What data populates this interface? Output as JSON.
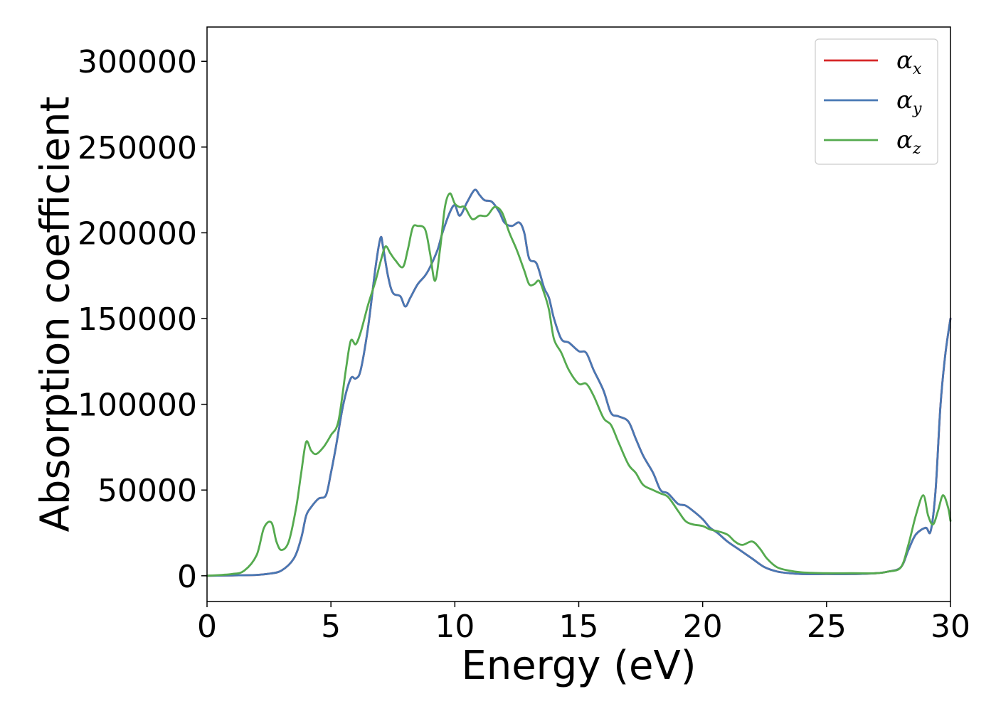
{
  "chart_data": {
    "type": "line",
    "xlabel": "Energy (eV)",
    "ylabel": "Absorption coefficient",
    "xlim": [
      0,
      30
    ],
    "ylim": [
      -15000,
      320000
    ],
    "xticks": [
      0,
      5,
      10,
      15,
      20,
      25,
      30
    ],
    "yticks": [
      0,
      50000,
      100000,
      150000,
      200000,
      250000,
      300000
    ],
    "grid": false,
    "legend_position": "top-right",
    "colors": {
      "alpha_x": "#d62728",
      "alpha_y": "#4878b4",
      "alpha_z": "#55aa4f"
    },
    "series": [
      {
        "name": "α",
        "subscript": "x",
        "key": "alpha_x",
        "draw_below": true,
        "x": [
          0,
          1,
          2,
          2.5,
          3,
          3.5,
          3.8,
          4,
          4.2,
          4.5,
          4.8,
          5,
          5.2,
          5.5,
          5.8,
          6,
          6.2,
          6.5,
          6.8,
          7,
          7.1,
          7.3,
          7.5,
          7.8,
          8,
          8.2,
          8.5,
          8.8,
          9,
          9.3,
          9.5,
          9.8,
          10,
          10.2,
          10.5,
          10.8,
          11,
          11.2,
          11.5,
          11.8,
          12,
          12.3,
          12.6,
          12.8,
          13,
          13.3,
          13.6,
          13.8,
          14,
          14.3,
          14.6,
          15,
          15.3,
          15.6,
          16,
          16.3,
          16.6,
          17,
          17.3,
          17.6,
          18,
          18.3,
          18.6,
          19,
          19.3,
          19.6,
          20,
          20.3,
          20.6,
          21,
          21.5,
          22,
          22.5,
          23,
          23.5,
          24,
          25,
          26,
          27,
          27.5,
          28,
          28.3,
          28.6,
          29,
          29.2,
          29.4,
          29.6,
          29.8,
          30
        ],
        "y": [
          0,
          200,
          500,
          1200,
          3000,
          10000,
          22000,
          35000,
          40000,
          45000,
          47000,
          60000,
          75000,
          100000,
          115000,
          115000,
          120000,
          145000,
          180000,
          197000,
          192000,
          175000,
          165000,
          163000,
          157000,
          162000,
          170000,
          175000,
          180000,
          190000,
          200000,
          212000,
          216000,
          210000,
          218000,
          225000,
          222000,
          219000,
          218000,
          212000,
          206000,
          204000,
          206000,
          200000,
          185000,
          182000,
          168000,
          162000,
          150000,
          138000,
          136000,
          131000,
          130000,
          120000,
          108000,
          95000,
          93000,
          90000,
          80000,
          70000,
          60000,
          50000,
          48000,
          42000,
          41000,
          38000,
          33000,
          28000,
          25000,
          20000,
          15000,
          10000,
          5000,
          2500,
          1500,
          1000,
          1000,
          1000,
          1500,
          2500,
          5000,
          15000,
          24000,
          28000,
          26000,
          50000,
          100000,
          130000,
          150000
        ]
      },
      {
        "name": "α",
        "subscript": "y",
        "key": "alpha_y",
        "draw_below": false,
        "x": [
          0,
          1,
          2,
          2.5,
          3,
          3.5,
          3.8,
          4,
          4.2,
          4.5,
          4.8,
          5,
          5.2,
          5.5,
          5.8,
          6,
          6.2,
          6.5,
          6.8,
          7,
          7.1,
          7.3,
          7.5,
          7.8,
          8,
          8.2,
          8.5,
          8.8,
          9,
          9.3,
          9.5,
          9.8,
          10,
          10.2,
          10.5,
          10.8,
          11,
          11.2,
          11.5,
          11.8,
          12,
          12.3,
          12.6,
          12.8,
          13,
          13.3,
          13.6,
          13.8,
          14,
          14.3,
          14.6,
          15,
          15.3,
          15.6,
          16,
          16.3,
          16.6,
          17,
          17.3,
          17.6,
          18,
          18.3,
          18.6,
          19,
          19.3,
          19.6,
          20,
          20.3,
          20.6,
          21,
          21.5,
          22,
          22.5,
          23,
          23.5,
          24,
          25,
          26,
          27,
          27.5,
          28,
          28.3,
          28.6,
          29,
          29.2,
          29.4,
          29.6,
          29.8,
          30
        ],
        "y": [
          0,
          200,
          500,
          1200,
          3000,
          10000,
          22000,
          35000,
          40000,
          45000,
          47000,
          60000,
          75000,
          100000,
          115000,
          115000,
          120000,
          145000,
          180000,
          197000,
          192000,
          175000,
          165000,
          163000,
          157000,
          162000,
          170000,
          175000,
          180000,
          190000,
          200000,
          212000,
          216000,
          210000,
          218000,
          225000,
          222000,
          219000,
          218000,
          212000,
          206000,
          204000,
          206000,
          200000,
          185000,
          182000,
          168000,
          162000,
          150000,
          138000,
          136000,
          131000,
          130000,
          120000,
          108000,
          95000,
          93000,
          90000,
          80000,
          70000,
          60000,
          50000,
          48000,
          42000,
          41000,
          38000,
          33000,
          28000,
          25000,
          20000,
          15000,
          10000,
          5000,
          2500,
          1500,
          1000,
          1000,
          1000,
          1500,
          2500,
          5000,
          15000,
          24000,
          28000,
          26000,
          50000,
          100000,
          130000,
          150000
        ]
      },
      {
        "name": "α",
        "subscript": "z",
        "key": "alpha_z",
        "draw_below": false,
        "x": [
          0,
          1,
          1.5,
          2,
          2.3,
          2.6,
          2.8,
          3,
          3.3,
          3.6,
          3.8,
          4,
          4.2,
          4.4,
          4.7,
          5,
          5.3,
          5.6,
          5.8,
          6,
          6.2,
          6.5,
          6.8,
          7,
          7.2,
          7.4,
          7.6,
          7.9,
          8.1,
          8.3,
          8.5,
          8.8,
          9,
          9.2,
          9.4,
          9.6,
          9.8,
          10,
          10.2,
          10.4,
          10.7,
          11,
          11.3,
          11.6,
          11.9,
          12.2,
          12.5,
          12.8,
          13,
          13.2,
          13.4,
          13.6,
          13.8,
          14,
          14.3,
          14.6,
          15,
          15.3,
          15.6,
          16,
          16.3,
          16.6,
          17,
          17.3,
          17.6,
          18,
          18.3,
          18.6,
          19,
          19.3,
          19.6,
          20,
          20.3,
          20.6,
          21,
          21.3,
          21.6,
          22,
          22.3,
          22.6,
          23,
          23.5,
          24,
          25,
          26,
          27,
          27.5,
          28,
          28.3,
          28.6,
          28.9,
          29.1,
          29.3,
          29.5,
          29.7,
          29.9,
          30
        ],
        "y": [
          0,
          1000,
          3000,
          12000,
          28000,
          31000,
          20000,
          15000,
          20000,
          40000,
          60000,
          78000,
          73000,
          71000,
          75000,
          82000,
          90000,
          120000,
          137000,
          135000,
          142000,
          158000,
          172000,
          183000,
          192000,
          188000,
          184000,
          180000,
          190000,
          203000,
          204000,
          202000,
          188000,
          172000,
          190000,
          215000,
          223000,
          217000,
          215000,
          215000,
          208000,
          210000,
          210000,
          215000,
          212000,
          200000,
          190000,
          178000,
          170000,
          170000,
          172000,
          165000,
          155000,
          138000,
          130000,
          120000,
          112000,
          112000,
          105000,
          92000,
          88000,
          78000,
          65000,
          60000,
          53000,
          50000,
          48000,
          46000,
          38000,
          32000,
          30000,
          29000,
          27000,
          26000,
          24000,
          20000,
          18000,
          20000,
          16000,
          10000,
          5000,
          3000,
          2000,
          1500,
          1500,
          1500,
          2500,
          5000,
          18000,
          35000,
          47000,
          35000,
          30000,
          38000,
          47000,
          40000,
          32000
        ]
      }
    ]
  }
}
